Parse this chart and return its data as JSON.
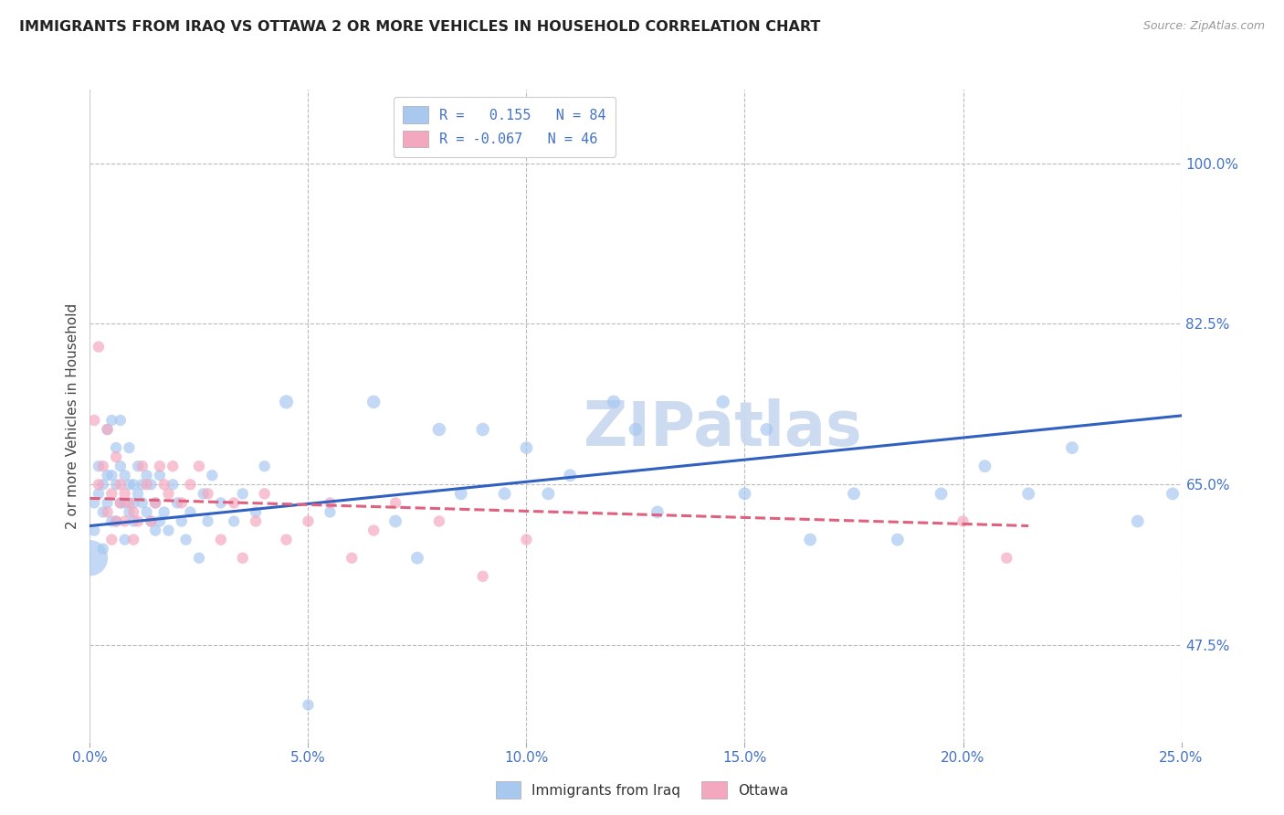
{
  "title": "IMMIGRANTS FROM IRAQ VS OTTAWA 2 OR MORE VEHICLES IN HOUSEHOLD CORRELATION CHART",
  "source": "Source: ZipAtlas.com",
  "ylabel": "2 or more Vehicles in Household",
  "yticks": [
    47.5,
    65.0,
    82.5,
    100.0
  ],
  "ytick_labels": [
    "47.5%",
    "65.0%",
    "82.5%",
    "100.0%"
  ],
  "xtick_labels": [
    "0.0%",
    "5.0%",
    "10.0%",
    "15.0%",
    "20.0%",
    "25.0%"
  ],
  "xmin": 0.0,
  "xmax": 0.25,
  "ymin": 37.0,
  "ymax": 108.0,
  "color_blue": "#a8c8f0",
  "color_pink": "#f4a8c0",
  "line_blue": "#3060c0",
  "line_pink": "#e06080",
  "watermark_color": "#c8d8f0",
  "blue_line_x": [
    0.0,
    0.25
  ],
  "blue_line_y": [
    60.5,
    72.5
  ],
  "pink_line_x": [
    0.0,
    0.215
  ],
  "pink_line_y": [
    63.5,
    60.5
  ],
  "blue_points_x": [
    0.001,
    0.001,
    0.002,
    0.002,
    0.003,
    0.003,
    0.003,
    0.004,
    0.004,
    0.004,
    0.005,
    0.005,
    0.005,
    0.006,
    0.006,
    0.006,
    0.007,
    0.007,
    0.007,
    0.008,
    0.008,
    0.008,
    0.009,
    0.009,
    0.009,
    0.01,
    0.01,
    0.01,
    0.011,
    0.011,
    0.012,
    0.012,
    0.013,
    0.013,
    0.014,
    0.014,
    0.015,
    0.015,
    0.016,
    0.016,
    0.017,
    0.018,
    0.019,
    0.02,
    0.021,
    0.022,
    0.023,
    0.025,
    0.026,
    0.027,
    0.028,
    0.03,
    0.033,
    0.035,
    0.038,
    0.04,
    0.045,
    0.05,
    0.055,
    0.065,
    0.07,
    0.075,
    0.08,
    0.085,
    0.09,
    0.095,
    0.1,
    0.105,
    0.11,
    0.12,
    0.125,
    0.13,
    0.145,
    0.15,
    0.155,
    0.165,
    0.175,
    0.185,
    0.195,
    0.205,
    0.215,
    0.225,
    0.24,
    0.248
  ],
  "blue_points_y": [
    60.0,
    63.0,
    64.0,
    67.0,
    62.0,
    65.0,
    58.0,
    66.0,
    71.0,
    63.0,
    61.0,
    66.0,
    72.0,
    61.0,
    65.0,
    69.0,
    63.0,
    67.0,
    72.0,
    59.0,
    63.0,
    66.0,
    62.0,
    65.0,
    69.0,
    61.0,
    65.0,
    63.0,
    64.0,
    67.0,
    63.0,
    65.0,
    62.0,
    66.0,
    61.0,
    65.0,
    60.0,
    63.0,
    61.0,
    66.0,
    62.0,
    60.0,
    65.0,
    63.0,
    61.0,
    59.0,
    62.0,
    57.0,
    64.0,
    61.0,
    66.0,
    63.0,
    61.0,
    64.0,
    62.0,
    67.0,
    74.0,
    41.0,
    62.0,
    74.0,
    61.0,
    57.0,
    71.0,
    64.0,
    71.0,
    64.0,
    69.0,
    64.0,
    66.0,
    74.0,
    71.0,
    62.0,
    74.0,
    64.0,
    71.0,
    59.0,
    64.0,
    59.0,
    64.0,
    67.0,
    64.0,
    69.0,
    61.0,
    64.0
  ],
  "blue_points_size": [
    80,
    80,
    80,
    80,
    80,
    80,
    80,
    80,
    80,
    80,
    80,
    80,
    80,
    80,
    80,
    80,
    80,
    80,
    80,
    80,
    80,
    80,
    80,
    80,
    80,
    80,
    80,
    80,
    80,
    80,
    80,
    80,
    80,
    80,
    80,
    80,
    80,
    80,
    80,
    80,
    80,
    80,
    80,
    80,
    80,
    80,
    80,
    80,
    80,
    80,
    80,
    80,
    80,
    80,
    80,
    80,
    120,
    80,
    80,
    110,
    100,
    100,
    110,
    100,
    110,
    100,
    100,
    100,
    100,
    110,
    110,
    100,
    110,
    100,
    100,
    100,
    100,
    100,
    100,
    100,
    100,
    100,
    100,
    100
  ],
  "blue_extra_large_x": [
    0.0
  ],
  "blue_extra_large_y": [
    57.0
  ],
  "blue_extra_large_size": [
    800
  ],
  "pink_points_x": [
    0.001,
    0.002,
    0.002,
    0.003,
    0.004,
    0.004,
    0.005,
    0.005,
    0.006,
    0.006,
    0.007,
    0.007,
    0.008,
    0.008,
    0.009,
    0.01,
    0.01,
    0.011,
    0.012,
    0.013,
    0.014,
    0.015,
    0.016,
    0.017,
    0.018,
    0.019,
    0.021,
    0.023,
    0.025,
    0.027,
    0.03,
    0.033,
    0.035,
    0.038,
    0.04,
    0.045,
    0.05,
    0.055,
    0.06,
    0.065,
    0.07,
    0.08,
    0.09,
    0.1,
    0.2,
    0.21
  ],
  "pink_points_y": [
    72.0,
    65.0,
    80.0,
    67.0,
    71.0,
    62.0,
    59.0,
    64.0,
    61.0,
    68.0,
    63.0,
    65.0,
    61.0,
    64.0,
    63.0,
    59.0,
    62.0,
    61.0,
    67.0,
    65.0,
    61.0,
    63.0,
    67.0,
    65.0,
    64.0,
    67.0,
    63.0,
    65.0,
    67.0,
    64.0,
    59.0,
    63.0,
    57.0,
    61.0,
    64.0,
    59.0,
    61.0,
    63.0,
    57.0,
    60.0,
    63.0,
    61.0,
    55.0,
    59.0,
    61.0,
    57.0
  ],
  "pink_points_size": [
    80,
    80,
    80,
    80,
    80,
    80,
    80,
    80,
    80,
    80,
    80,
    80,
    80,
    80,
    80,
    80,
    80,
    80,
    80,
    80,
    80,
    80,
    80,
    80,
    80,
    80,
    80,
    80,
    80,
    80,
    80,
    80,
    80,
    80,
    80,
    80,
    80,
    80,
    80,
    80,
    80,
    80,
    80,
    80,
    80,
    80
  ]
}
